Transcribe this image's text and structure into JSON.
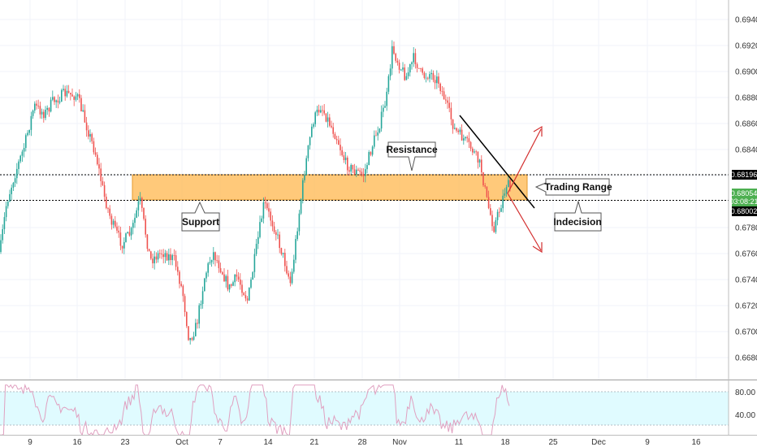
{
  "chart_data": {
    "type": "candlestick",
    "price_axis": {
      "ticks": [
        "0.69400",
        "0.69200",
        "0.69000",
        "0.68800",
        "0.68600",
        "0.68400",
        "0.68200",
        "0.67800",
        "0.67600",
        "0.67400",
        "0.67200",
        "0.67000",
        "0.66800"
      ],
      "range": [
        0.666,
        0.695
      ]
    },
    "time_axis": {
      "ticks": [
        "9",
        "16",
        "23",
        "Oct",
        "7",
        "14",
        "21",
        "28",
        "Nov",
        "11",
        "18",
        "25",
        "Dec",
        "9",
        "16"
      ]
    },
    "price_labels": {
      "resistance_line": "0.68196",
      "current_price": "0.68054",
      "countdown": "03:08:21",
      "support_line": "0.68002"
    },
    "callouts": {
      "resistance": "Resistance",
      "support": "Support",
      "trading_range": "Trading Range",
      "indecision": "Indecision"
    },
    "oscillator": {
      "ticks": [
        "80.00",
        "40.00"
      ],
      "range": [
        20,
        100
      ],
      "upper_level": 80,
      "lower_level": 40
    },
    "colors": {
      "up_candle": "#26a69a",
      "down_candle": "#ef5350",
      "zone_fill": "#ffb74d",
      "arrow": "#d32f2f",
      "trendline": "#000000",
      "oscillator_line": "#e0a0c0",
      "oscillator_band": "#e0fbff",
      "current_price_tag": "#4caf50"
    }
  }
}
